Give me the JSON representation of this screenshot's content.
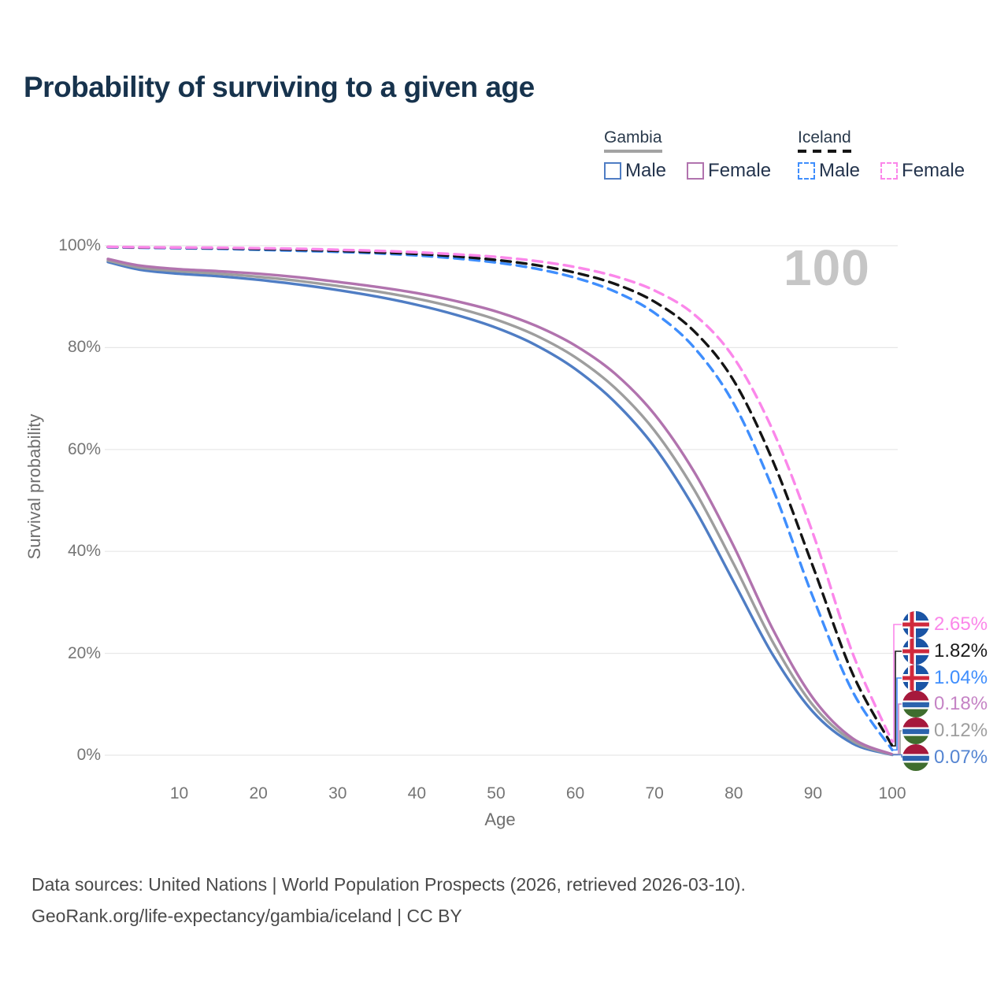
{
  "page": {
    "title": "Probability of surviving to a given age",
    "watermark": "100",
    "footer_line1": "Data sources: United Nations | World Population Prospects (2026, retrieved 2026-03-10).",
    "footer_line2": "GeoRank.org/life-expectancy/gambia/iceland | CC BY"
  },
  "legend": {
    "groups": [
      {
        "label": "Gambia",
        "underline_style": "solid",
        "underline_color": "#a3a3a3",
        "items": [
          {
            "label": "Male",
            "color": "#4f7dc4",
            "dash": false
          },
          {
            "label": "Female",
            "color": "#b173ae",
            "dash": false
          }
        ]
      },
      {
        "label": "Iceland",
        "underline_style": "dashed",
        "underline_color": "#151515",
        "items": [
          {
            "label": "Male",
            "color": "#3f8efd",
            "dash": true
          },
          {
            "label": "Female",
            "color": "#fb87ea",
            "dash": true
          }
        ]
      }
    ]
  },
  "chart_data": {
    "type": "line",
    "title": "Probability of surviving to a given age",
    "xlabel": "Age",
    "ylabel": "Survival probability",
    "xlim": [
      1,
      100
    ],
    "ylim": [
      0,
      100
    ],
    "grid": "horizontal-only",
    "x_ticks": [
      10,
      20,
      30,
      40,
      50,
      60,
      70,
      80,
      90,
      100
    ],
    "y_ticks_percent": [
      0,
      20,
      40,
      60,
      80,
      100
    ],
    "ages": [
      1,
      5,
      10,
      15,
      20,
      25,
      30,
      35,
      40,
      45,
      50,
      55,
      60,
      65,
      70,
      75,
      80,
      85,
      90,
      95,
      100
    ],
    "series": [
      {
        "name": "Gambia Male",
        "country": "Gambia",
        "sex": "Male",
        "color": "#4f7dc4",
        "dash": false,
        "values": [
          96.8,
          95.3,
          94.5,
          94.0,
          93.3,
          92.4,
          91.3,
          90.0,
          88.4,
          86.4,
          83.9,
          80.5,
          75.8,
          69.3,
          60.5,
          48.5,
          34.0,
          19.5,
          8.5,
          2.3,
          0.07
        ]
      },
      {
        "name": "Gambia Both sexes",
        "country": "Gambia",
        "sex": "Both",
        "color": "#9e9e9e",
        "dash": false,
        "values": [
          97.1,
          95.7,
          95.0,
          94.5,
          93.9,
          93.1,
          92.1,
          91.0,
          89.6,
          87.8,
          85.5,
          82.4,
          78.1,
          72.1,
          63.7,
          52.1,
          37.5,
          22.0,
          9.8,
          2.8,
          0.12
        ]
      },
      {
        "name": "Gambia Female",
        "country": "Gambia",
        "sex": "Female",
        "color": "#b173ae",
        "dash": false,
        "values": [
          97.4,
          96.1,
          95.4,
          95.0,
          94.5,
          93.8,
          92.9,
          91.9,
          90.7,
          89.1,
          87.1,
          84.3,
          80.4,
          74.9,
          66.9,
          55.6,
          41.0,
          24.5,
          11.2,
          3.3,
          0.18
        ]
      },
      {
        "name": "Iceland Male",
        "country": "Iceland",
        "sex": "Male",
        "color": "#3f8efd",
        "dash": true,
        "values": [
          99.7,
          99.6,
          99.5,
          99.4,
          99.2,
          99.0,
          98.8,
          98.5,
          98.1,
          97.5,
          96.7,
          95.5,
          93.7,
          91.0,
          86.8,
          80.0,
          69.0,
          52.0,
          31.0,
          12.5,
          1.04
        ]
      },
      {
        "name": "Iceland Both sexes",
        "country": "Iceland",
        "sex": "Both",
        "color": "#141414",
        "dash": true,
        "values": [
          99.75,
          99.65,
          99.6,
          99.5,
          99.35,
          99.2,
          99.0,
          98.7,
          98.4,
          97.9,
          97.2,
          96.2,
          94.7,
          92.5,
          89.0,
          83.2,
          73.5,
          57.5,
          37.0,
          16.0,
          1.82
        ]
      },
      {
        "name": "Iceland Female",
        "country": "Iceland",
        "sex": "Female",
        "color": "#fb87ea",
        "dash": true,
        "values": [
          99.8,
          99.7,
          99.65,
          99.6,
          99.5,
          99.4,
          99.2,
          99.0,
          98.7,
          98.3,
          97.8,
          97.0,
          95.8,
          94.0,
          91.2,
          86.5,
          78.0,
          63.5,
          43.5,
          20.0,
          2.65
        ]
      }
    ],
    "end_labels": [
      {
        "text": "2.65%",
        "value": 2.65,
        "color": "#fb87ea",
        "flag": "iceland",
        "series": "Iceland Female"
      },
      {
        "text": "1.82%",
        "value": 1.82,
        "color": "#1a1a1a",
        "flag": "iceland",
        "series": "Iceland Both sexes"
      },
      {
        "text": "1.04%",
        "value": 1.04,
        "color": "#3f8efd",
        "flag": "iceland",
        "series": "Iceland Male"
      },
      {
        "text": "0.18%",
        "value": 0.18,
        "color": "#c583c5",
        "flag": "gambia",
        "series": "Gambia Female"
      },
      {
        "text": "0.12%",
        "value": 0.12,
        "color": "#9e9e9e",
        "flag": "gambia",
        "series": "Gambia Both sexes"
      },
      {
        "text": "0.07%",
        "value": 0.07,
        "color": "#5585d2",
        "flag": "gambia",
        "series": "Gambia Male"
      }
    ]
  }
}
